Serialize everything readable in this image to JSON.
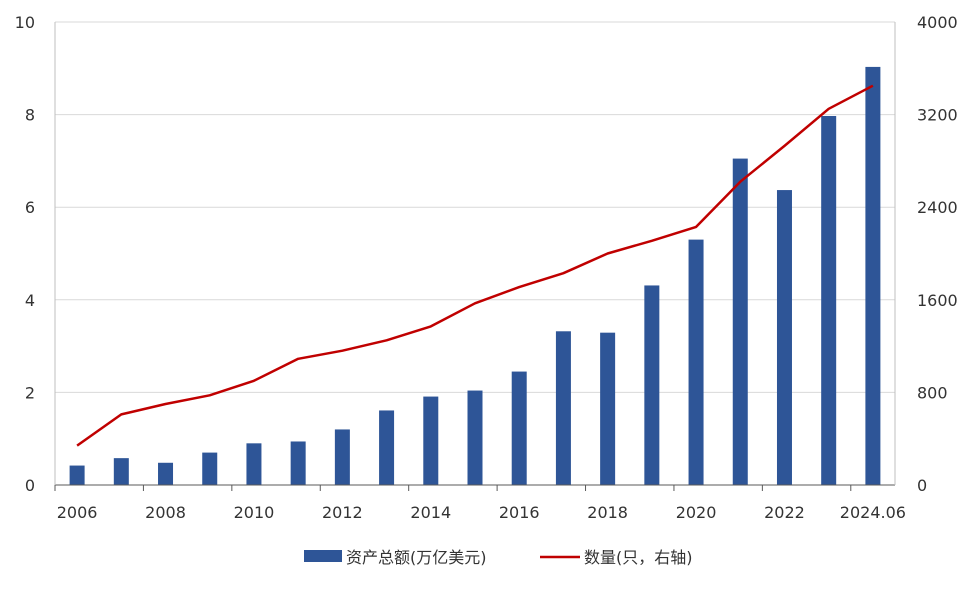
{
  "chart_data": {
    "type": "bar+line",
    "categories": [
      "2006",
      "2007",
      "2008",
      "2009",
      "2010",
      "2011",
      "2012",
      "2013",
      "2014",
      "2015",
      "2016",
      "2017",
      "2018",
      "2019",
      "2020",
      "2021",
      "2022",
      "2023",
      "2024.06"
    ],
    "x_tick_labels": [
      "2006",
      "2008",
      "2010",
      "2012",
      "2014",
      "2016",
      "2018",
      "2020",
      "2022",
      "2024.06"
    ],
    "series": [
      {
        "name": "资产总额(万亿美元)",
        "type": "bar",
        "axis": "left",
        "color": "#2E5597",
        "values": [
          0.42,
          0.58,
          0.48,
          0.7,
          0.9,
          0.94,
          1.2,
          1.61,
          1.91,
          2.04,
          2.45,
          3.32,
          3.29,
          4.31,
          5.3,
          7.05,
          6.37,
          7.97,
          9.03
        ]
      },
      {
        "name": "数量(只，右轴)",
        "type": "line",
        "axis": "right",
        "color": "#C00000",
        "values": [
          340,
          610,
          700,
          775,
          900,
          1090,
          1160,
          1250,
          1370,
          1570,
          1710,
          1830,
          2000,
          2110,
          2230,
          2620,
          2930,
          3250,
          3450
        ]
      }
    ],
    "y_left": {
      "min": 0,
      "max": 10,
      "ticks": [
        0,
        2,
        4,
        6,
        8,
        10
      ]
    },
    "y_right": {
      "min": 0,
      "max": 4000,
      "ticks": [
        0,
        800,
        1600,
        2400,
        3200,
        4000
      ]
    },
    "grid": true,
    "legend_position": "bottom"
  }
}
